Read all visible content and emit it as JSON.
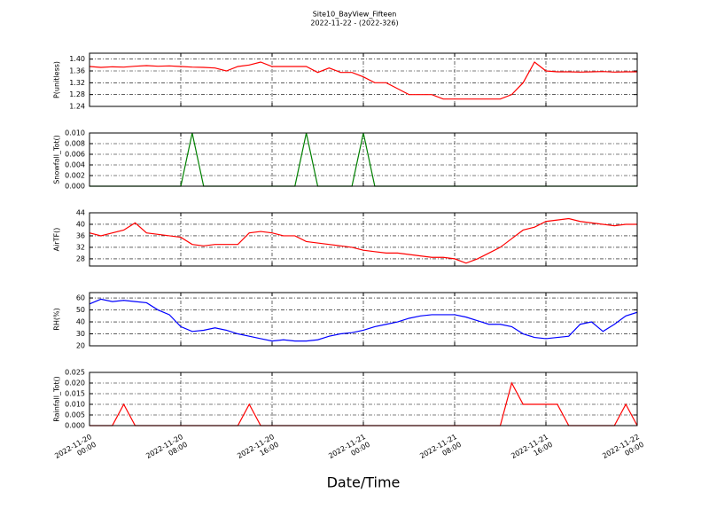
{
  "title": "Site10_BayView_Fifteen",
  "subtitle": "2022-11-22 - (2022-326)",
  "xlabel": "Date/Time",
  "xlim": [
    0,
    48
  ],
  "xticks": [
    {
      "value": 0,
      "label": "2022-11-20\n00:00"
    },
    {
      "value": 8,
      "label": "2022-11-20\n08:00"
    },
    {
      "value": 16,
      "label": "2022-11-20\n16:00"
    },
    {
      "value": 24,
      "label": "2022-11-21\n00:00"
    },
    {
      "value": 32,
      "label": "2022-11-21\n08:00"
    },
    {
      "value": 40,
      "label": "2022-11-21\n16:00"
    },
    {
      "value": 48,
      "label": "2022-11-22\n00:00"
    }
  ],
  "x": [
    0,
    1,
    2,
    3,
    4,
    5,
    6,
    7,
    8,
    9,
    10,
    11,
    12,
    13,
    14,
    15,
    16,
    17,
    18,
    19,
    20,
    21,
    22,
    23,
    24,
    25,
    26,
    27,
    28,
    29,
    30,
    31,
    32,
    33,
    34,
    35,
    36,
    37,
    38,
    39,
    40,
    41,
    42,
    43,
    44,
    45,
    46,
    47,
    48
  ],
  "grid": true,
  "chart_data": [
    {
      "type": "line",
      "ylabel": "P(unitless)",
      "color": "#ff0000",
      "ylim": [
        1.24,
        1.42
      ],
      "yticks": [
        1.24,
        1.28,
        1.32,
        1.36,
        {
          "value": 1.4,
          "label": "1.40"
        }
      ],
      "values": [
        1.375,
        1.372,
        1.374,
        1.373,
        1.376,
        1.378,
        1.376,
        1.377,
        1.375,
        1.373,
        1.372,
        1.37,
        1.36,
        1.375,
        1.38,
        1.39,
        1.375,
        1.375,
        1.375,
        1.375,
        1.355,
        1.37,
        1.355,
        1.355,
        1.34,
        1.32,
        1.32,
        1.3,
        1.28,
        1.28,
        1.28,
        1.265,
        1.265,
        1.265,
        1.265,
        1.265,
        1.265,
        1.28,
        1.32,
        1.39,
        1.36,
        1.357,
        1.357,
        1.356,
        1.357,
        1.358,
        1.356,
        1.357,
        1.357
      ]
    },
    {
      "type": "line",
      "ylabel": "Snowfall_Tot()",
      "color": "#008000",
      "ylim": [
        0,
        0.01
      ],
      "yticks": [
        {
          "value": 0,
          "label": "0.000"
        },
        {
          "value": 0.002,
          "label": "0.002"
        },
        {
          "value": 0.004,
          "label": "0.004"
        },
        {
          "value": 0.006,
          "label": "0.006"
        },
        {
          "value": 0.008,
          "label": "0.008"
        },
        {
          "value": 0.01,
          "label": "0.010"
        }
      ],
      "values": [
        0,
        0,
        0,
        0,
        0,
        0,
        0,
        0,
        0,
        0.01,
        0,
        0,
        0,
        0,
        0,
        0,
        0,
        0,
        0,
        0.01,
        0,
        0,
        0,
        0,
        0.01,
        0,
        0,
        0,
        0,
        0,
        0,
        0,
        0,
        0,
        0,
        0,
        0,
        0,
        0,
        0,
        0,
        0,
        0,
        0,
        0,
        0,
        0,
        0,
        0
      ]
    },
    {
      "type": "line",
      "ylabel": "AirTF()",
      "color": "#ff0000",
      "ylim": [
        25.5,
        44
      ],
      "yticks": [
        28,
        32,
        36,
        40,
        44
      ],
      "values": [
        37,
        36,
        37,
        38,
        40.5,
        37,
        36.5,
        36,
        35.5,
        33,
        32.5,
        33,
        33,
        33,
        37,
        37.5,
        37,
        36,
        36,
        34,
        33.5,
        33,
        32.5,
        32,
        31,
        30.5,
        30,
        30,
        29.5,
        29,
        28.5,
        28.5,
        28,
        26.5,
        28,
        30,
        32,
        35,
        38,
        39,
        41,
        41.5,
        42,
        41,
        40.5,
        40,
        39.5,
        40,
        40
      ]
    },
    {
      "type": "line",
      "ylabel": "RH(%)",
      "color": "#0000ff",
      "ylim": [
        20,
        64.5
      ],
      "yticks": [
        20,
        30,
        40,
        50,
        60
      ],
      "values": [
        55,
        59,
        57,
        58,
        57,
        56,
        50,
        46,
        36,
        32,
        33,
        35,
        33,
        30,
        28,
        26,
        24,
        25,
        24,
        24,
        25,
        28,
        30,
        31,
        33,
        36,
        38,
        40,
        43,
        45,
        46,
        46,
        46,
        44,
        41,
        38,
        38,
        36,
        30,
        27,
        26,
        27,
        28,
        38,
        40,
        32,
        38,
        45,
        48
      ]
    },
    {
      "type": "line",
      "ylabel": "Rainfall_Tot()",
      "color": "#ff0000",
      "ylim": [
        0,
        0.025
      ],
      "yticks": [
        {
          "value": 0,
          "label": "0.000"
        },
        0.005,
        {
          "value": 0.01,
          "label": "0.010"
        },
        0.015,
        {
          "value": 0.02,
          "label": "0.020"
        },
        0.025
      ],
      "values": [
        0,
        0,
        0,
        0.01,
        0,
        0,
        0,
        0,
        0,
        0,
        0,
        0,
        0,
        0,
        0.01,
        0,
        0,
        0,
        0,
        0,
        0,
        0,
        0,
        0,
        0,
        0,
        0,
        0,
        0,
        0,
        0,
        0,
        0,
        0,
        0,
        0,
        0,
        0.02,
        0.01,
        0.01,
        0.01,
        0.01,
        0,
        0,
        0,
        0,
        0,
        0.01,
        0
      ]
    }
  ]
}
